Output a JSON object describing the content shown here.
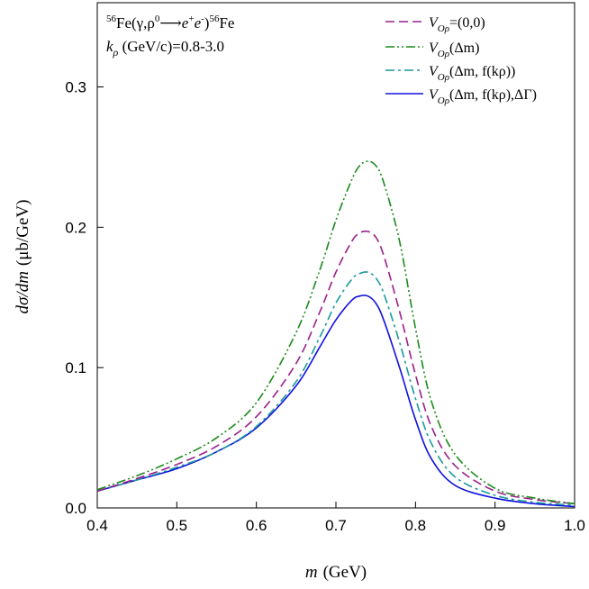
{
  "chart_data": {
    "type": "line",
    "xlabel_var": "m",
    "xlabel_unit": "(GeV)",
    "ylabel_var": "dσ/dm",
    "ylabel_unit": "(μb/GeV)",
    "xlim": [
      0.4,
      1.0
    ],
    "ylim": [
      0.0,
      0.36
    ],
    "xticks": [
      0.4,
      0.5,
      0.6,
      0.7,
      0.8,
      0.9,
      1.0
    ],
    "xtick_labels": [
      "0.4",
      "0.5",
      "0.6",
      "0.7",
      "0.8",
      "0.9",
      "1.0"
    ],
    "yticks": [
      0.0,
      0.1,
      0.2,
      0.3
    ],
    "ytick_labels": [
      "0.0",
      "0.1",
      "0.2",
      "0.3"
    ],
    "annotation": {
      "line1_prefix_sup": "56",
      "line1_main": "Fe(γ,ρ",
      "line1_rho_sup": "0",
      "line1_arrow": "⟶",
      "line1_e1": "e",
      "line1_plus": "+",
      "line1_e2": "e",
      "line1_minus": "-",
      "line1_close": ")",
      "line1_suffix_sup": "56",
      "line1_suffix": "Fe",
      "line2_var": "k",
      "line2_sub": "ρ",
      "line2_rest": " (GeV/c)=0.8-3.0"
    },
    "x": [
      0.4,
      0.45,
      0.5,
      0.55,
      0.6,
      0.65,
      0.68,
      0.7,
      0.72,
      0.73,
      0.74,
      0.75,
      0.76,
      0.78,
      0.8,
      0.82,
      0.85,
      0.9,
      0.95,
      1.0
    ],
    "series": [
      {
        "name": "V_Oρ=(0,0)",
        "legend_main": "V",
        "legend_sub": "Oρ",
        "legend_tail": "=(0,0)",
        "color": "#9b1f8a",
        "dash": "10,5",
        "values": [
          0.012,
          0.021,
          0.031,
          0.044,
          0.065,
          0.103,
          0.14,
          0.168,
          0.19,
          0.196,
          0.197,
          0.193,
          0.18,
          0.14,
          0.095,
          0.058,
          0.03,
          0.012,
          0.006,
          0.003
        ]
      },
      {
        "name": "V_Oρ(Δm)",
        "legend_main": "V",
        "legend_sub": "Oρ",
        "legend_tail": "(Δm)",
        "color": "#1a8a1a",
        "dash": "10,3,2,3,2,3",
        "values": [
          0.013,
          0.023,
          0.035,
          0.05,
          0.075,
          0.125,
          0.17,
          0.205,
          0.234,
          0.244,
          0.247,
          0.244,
          0.232,
          0.19,
          0.128,
          0.076,
          0.038,
          0.014,
          0.007,
          0.003
        ]
      },
      {
        "name": "V_Oρ(Δm, f(k_ρ))",
        "legend_main": "V",
        "legend_sub": "Oρ",
        "legend_tail": "(Δm, f(kρ))",
        "color": "#1a9a9a",
        "dash": "10,4,3,4",
        "values": [
          0.012,
          0.02,
          0.029,
          0.04,
          0.058,
          0.09,
          0.122,
          0.146,
          0.163,
          0.167,
          0.168,
          0.164,
          0.153,
          0.118,
          0.078,
          0.046,
          0.022,
          0.009,
          0.004,
          0.002
        ]
      },
      {
        "name": "V_Oρ(Δm, f(k_ρ),ΔΓ)",
        "legend_main": "V",
        "legend_sub": "Oρ",
        "legend_tail": "(Δm, f(kρ),ΔΓ)",
        "color": "#1010e0",
        "dash": "",
        "values": [
          0.012,
          0.02,
          0.028,
          0.04,
          0.057,
          0.087,
          0.115,
          0.134,
          0.148,
          0.151,
          0.151,
          0.146,
          0.134,
          0.1,
          0.063,
          0.035,
          0.016,
          0.007,
          0.003,
          0.001
        ]
      }
    ]
  }
}
